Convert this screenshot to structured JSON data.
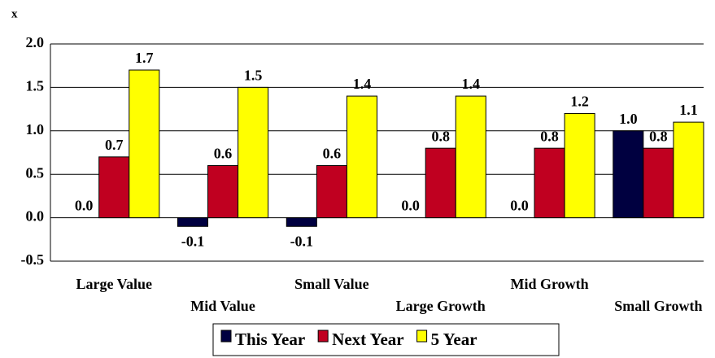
{
  "chart_data": {
    "type": "bar",
    "y_label": "x",
    "categories": [
      "Large Value",
      "Mid Value",
      "Small Value",
      "Large Growth",
      "Mid Growth",
      "Small Growth"
    ],
    "series": [
      {
        "name": "This Year",
        "color": "#000040",
        "values": [
          0.0,
          -0.1,
          -0.1,
          0.0,
          0.0,
          1.0
        ],
        "value_labels": [
          "0.0",
          "-0.1",
          "-0.1",
          "0.0",
          "0.0",
          "1.0"
        ]
      },
      {
        "name": "Next Year",
        "color": "#c00020",
        "values": [
          0.7,
          0.6,
          0.6,
          0.8,
          0.8,
          0.8
        ],
        "value_labels": [
          "0.7",
          "0.6",
          "0.6",
          "0.8",
          "0.8",
          "0.8"
        ]
      },
      {
        "name": "5 Year",
        "color": "#ffff00",
        "values": [
          1.7,
          1.5,
          1.4,
          1.4,
          1.2,
          1.1
        ],
        "value_labels": [
          "1.7",
          "1.5",
          "1.4",
          "1.4",
          "1.2",
          "1.1"
        ]
      }
    ],
    "ylim": [
      -0.5,
      2.0
    ],
    "yticks": [
      {
        "value": -0.5,
        "label": "-0.5"
      },
      {
        "value": 0,
        "label": "0.0"
      },
      {
        "value": 0.5,
        "label": "0.5"
      },
      {
        "value": 1,
        "label": "1.0"
      },
      {
        "value": 1.5,
        "label": "1.5"
      },
      {
        "value": 2,
        "label": "2.0"
      }
    ],
    "grid": true,
    "legend": "bottom"
  }
}
